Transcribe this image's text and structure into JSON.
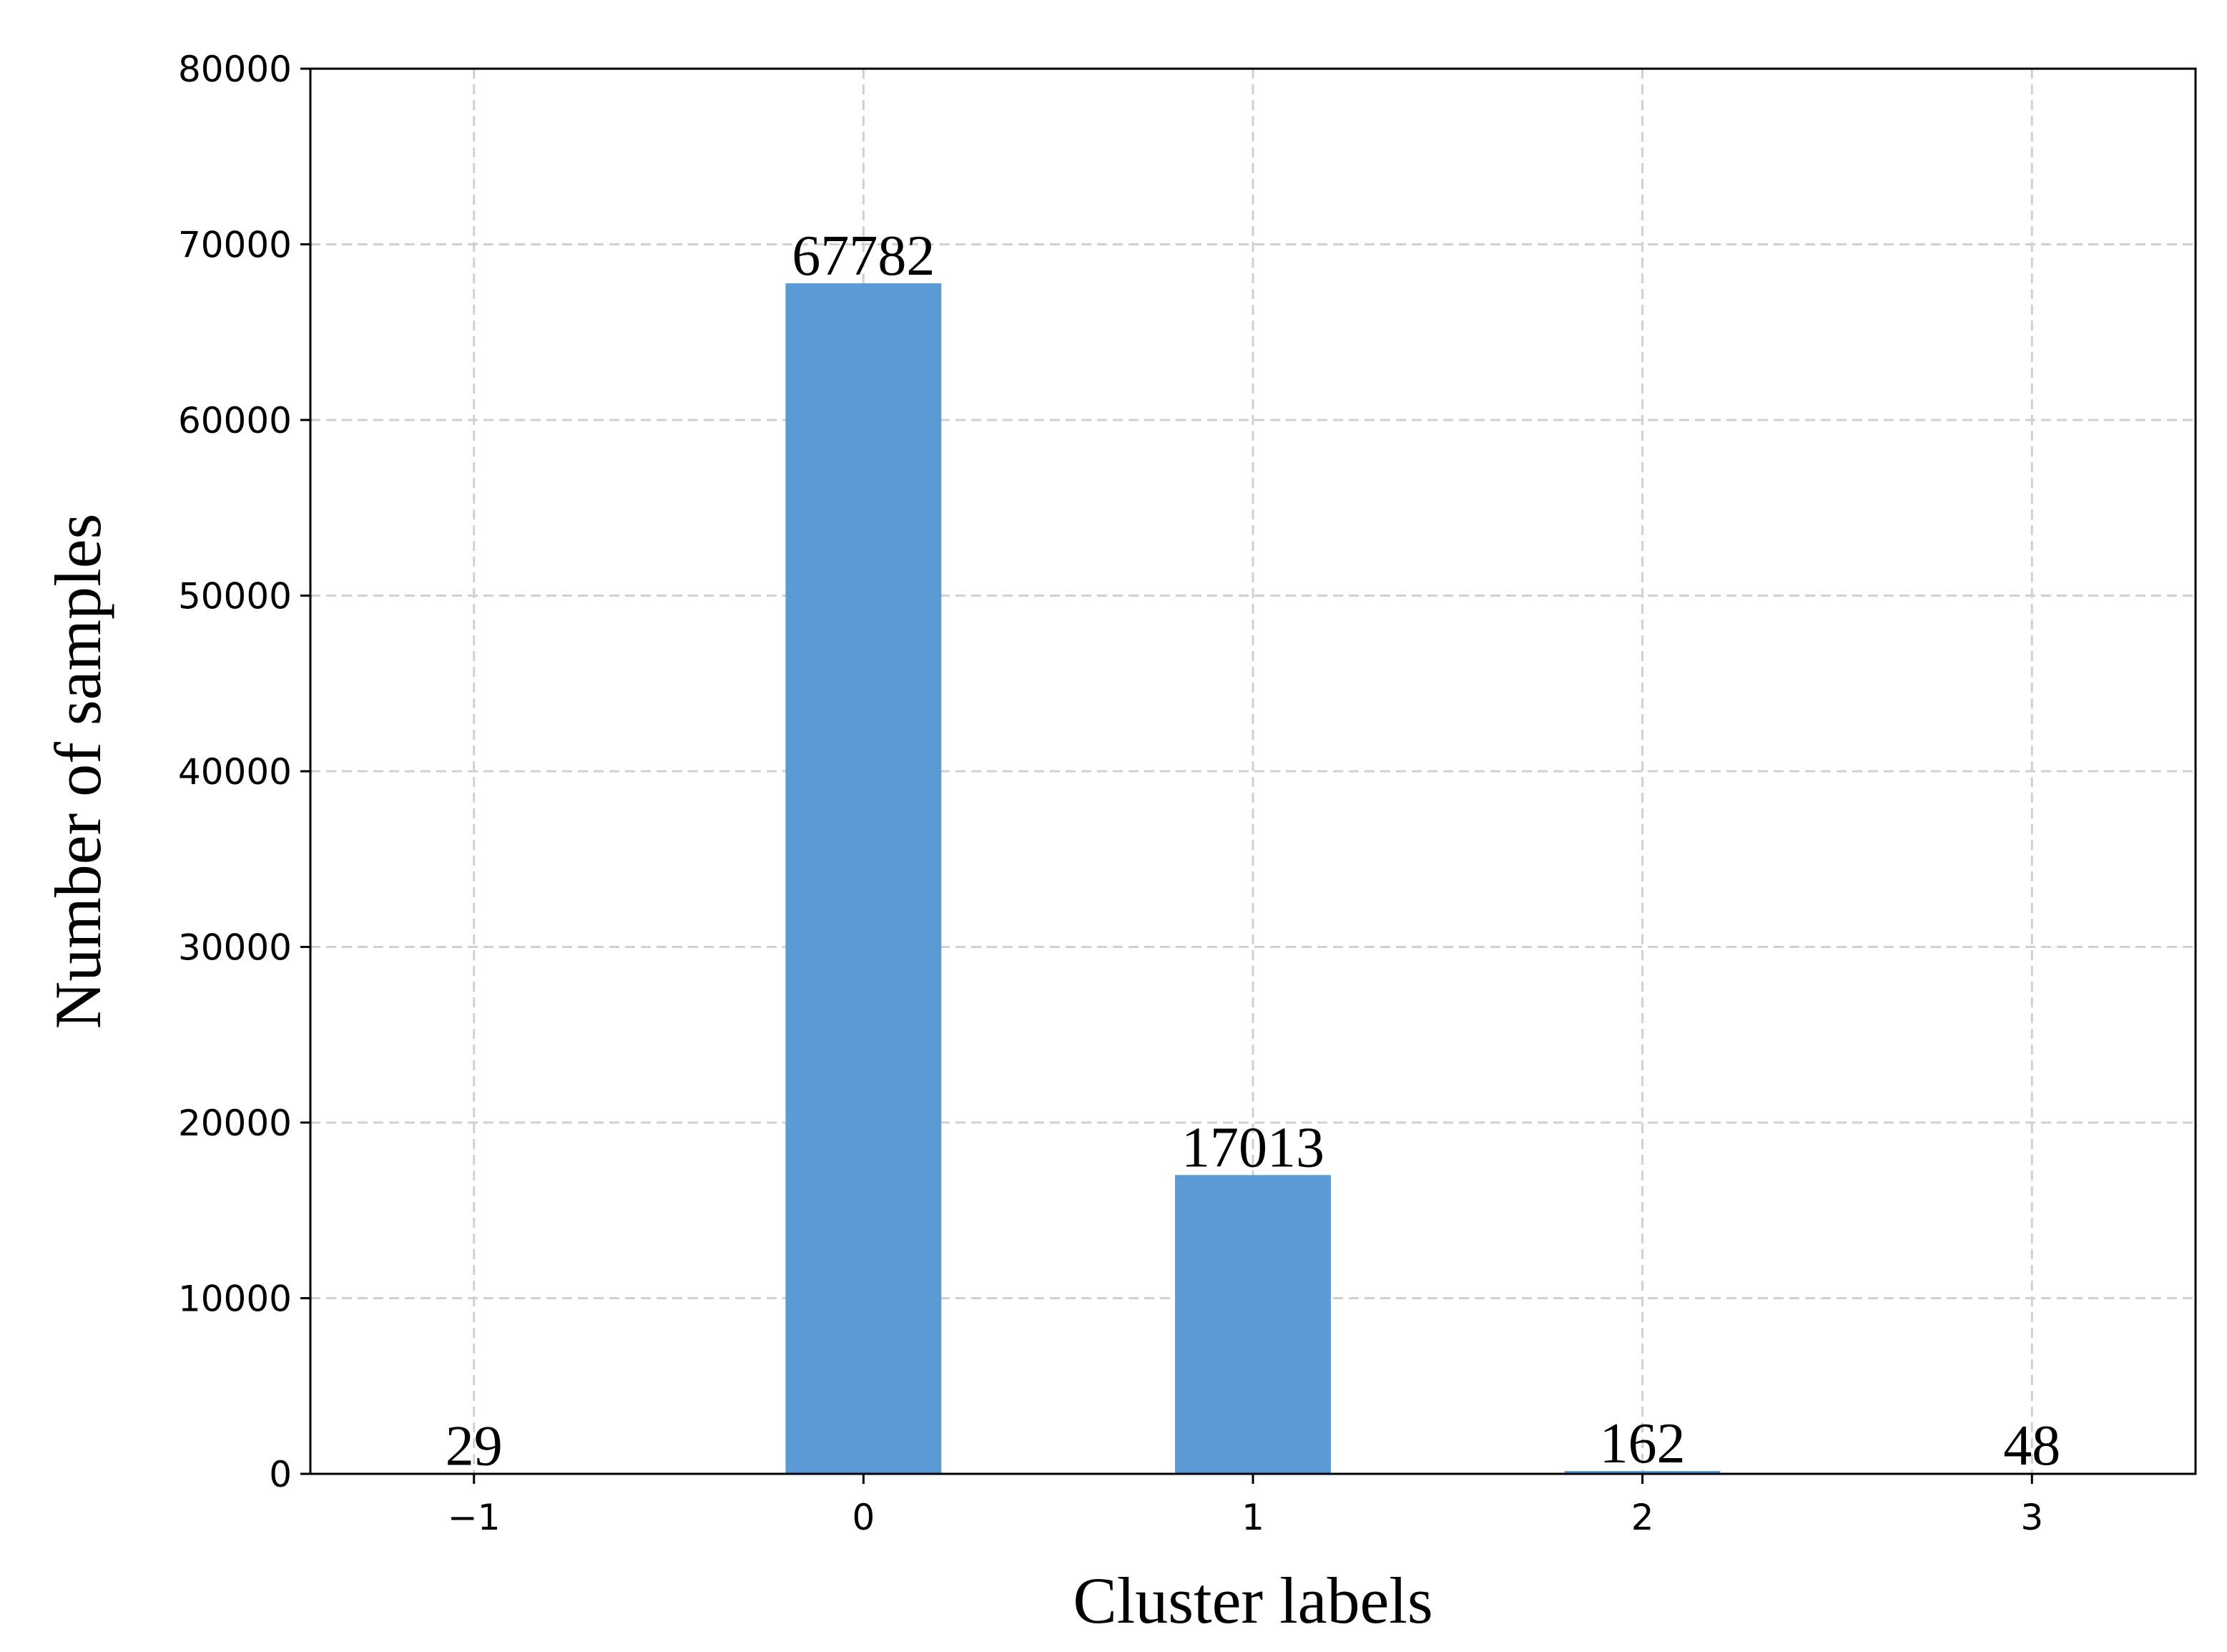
{
  "chart_data": {
    "type": "bar",
    "x_label": "Cluster labels",
    "y_label": "Number of samples",
    "x": [
      -1,
      0,
      1,
      2,
      3
    ],
    "values": [
      29,
      67782,
      17013,
      162,
      48
    ],
    "color": "#5b9bd5",
    "xlim": [
      -1.42,
      3.42
    ],
    "xticks": [
      {
        "value": -1,
        "label": "−1"
      },
      0,
      1,
      2,
      3
    ],
    "ylim": [
      0,
      80000
    ],
    "yticks": [
      0,
      10000,
      20000,
      30000,
      40000,
      50000,
      60000,
      70000,
      80000
    ],
    "grid": true
  }
}
